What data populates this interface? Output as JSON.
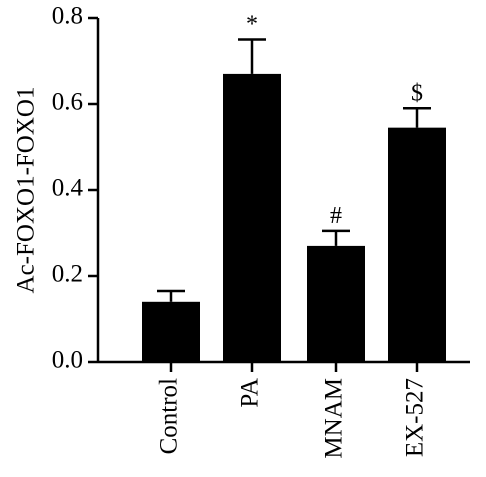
{
  "chart_data": {
    "type": "bar",
    "title": "",
    "xlabel": "",
    "ylabel": "Ac-FOXO1-FOXO1",
    "categories": [
      "Control",
      "PA",
      "MNAM",
      "EX-527"
    ],
    "values": [
      0.14,
      0.67,
      0.27,
      0.545
    ],
    "error_upper": [
      0.165,
      0.75,
      0.305,
      0.59
    ],
    "annotations": [
      "",
      "*",
      "#",
      "$"
    ],
    "ylim": [
      0,
      0.8
    ],
    "yticks": [
      0.0,
      0.2,
      0.4,
      0.6,
      0.8
    ],
    "ytick_labels": [
      "0.0",
      "0.2",
      "0.4",
      "0.6",
      "0.8"
    ],
    "bar_color": "#000000",
    "grid": false,
    "legend": false
  }
}
